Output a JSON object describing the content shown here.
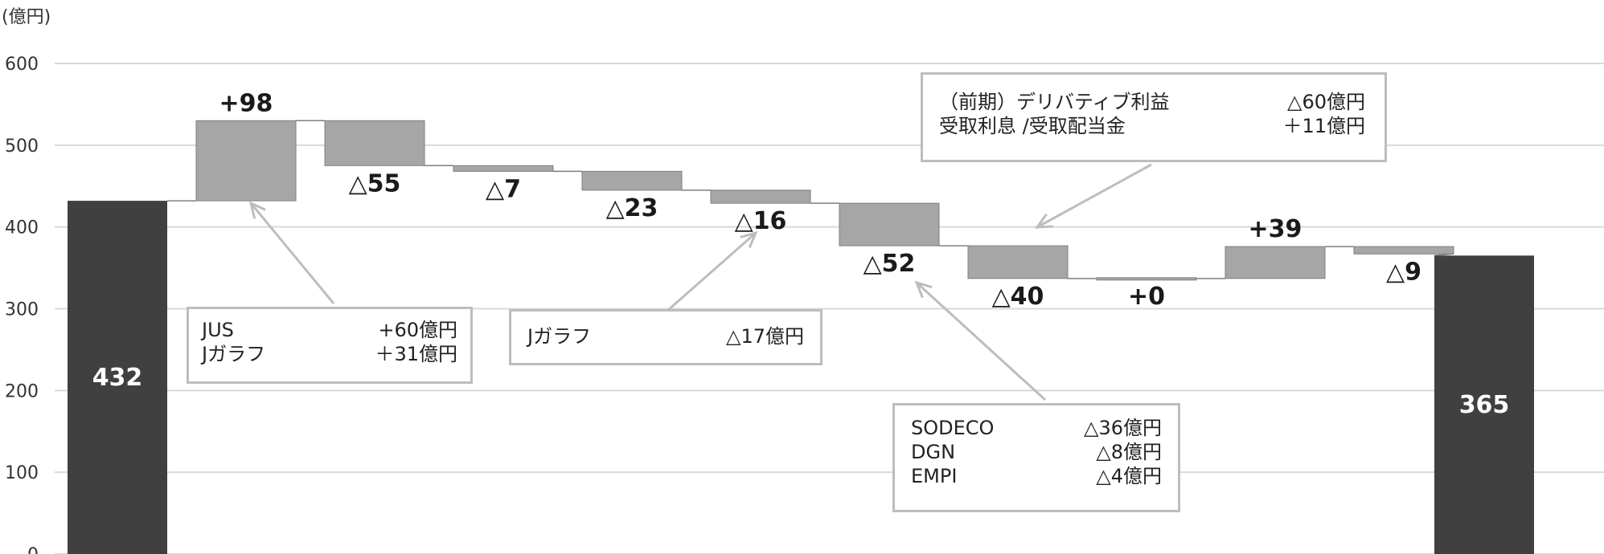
{
  "chart_data": {
    "type": "waterfall",
    "unit_label": "(億円)",
    "ylim": [
      0,
      600
    ],
    "yticks": [
      0,
      100,
      200,
      300,
      400,
      500,
      600
    ],
    "grid": true,
    "start": {
      "value": 432,
      "label": "432"
    },
    "end": {
      "value": 365,
      "label": "365"
    },
    "steps": [
      {
        "delta": 98,
        "label": "+98"
      },
      {
        "delta": -55,
        "label": "△55"
      },
      {
        "delta": -7,
        "label": "△7"
      },
      {
        "delta": -23,
        "label": "△23"
      },
      {
        "delta": -16,
        "label": "△16"
      },
      {
        "delta": -52,
        "label": "△52"
      },
      {
        "delta": -40,
        "label": "△40"
      },
      {
        "delta": 0,
        "label": "+0"
      },
      {
        "delta": 39,
        "label": "+39"
      },
      {
        "delta": -9,
        "label": "△9"
      }
    ],
    "colors": {
      "total": "#404040",
      "step": "#a6a6a6",
      "step_edge": "#7f7f7f",
      "grid": "#d9d9d9",
      "connector": "#7f7f7f"
    }
  },
  "callouts": {
    "box1": {
      "rows": [
        {
          "label": "JUS",
          "value": "+60億円"
        },
        {
          "label": "Jガラフ",
          "value": "＋31億円"
        }
      ]
    },
    "box2": {
      "rows": [
        {
          "label": "Jガラフ",
          "value": "△17億円"
        }
      ]
    },
    "box3": {
      "rows": [
        {
          "label": "（前期）デリバティブ利益",
          "value": "△60億円"
        },
        {
          "label": "受取利息 /受取配当金",
          "value": "＋11億円"
        }
      ]
    },
    "box4": {
      "rows": [
        {
          "label": "SODECO",
          "value": "△36億円"
        },
        {
          "label": "DGN",
          "value": "△8億円"
        },
        {
          "label": "EMPI",
          "value": "△4億円"
        }
      ]
    }
  }
}
